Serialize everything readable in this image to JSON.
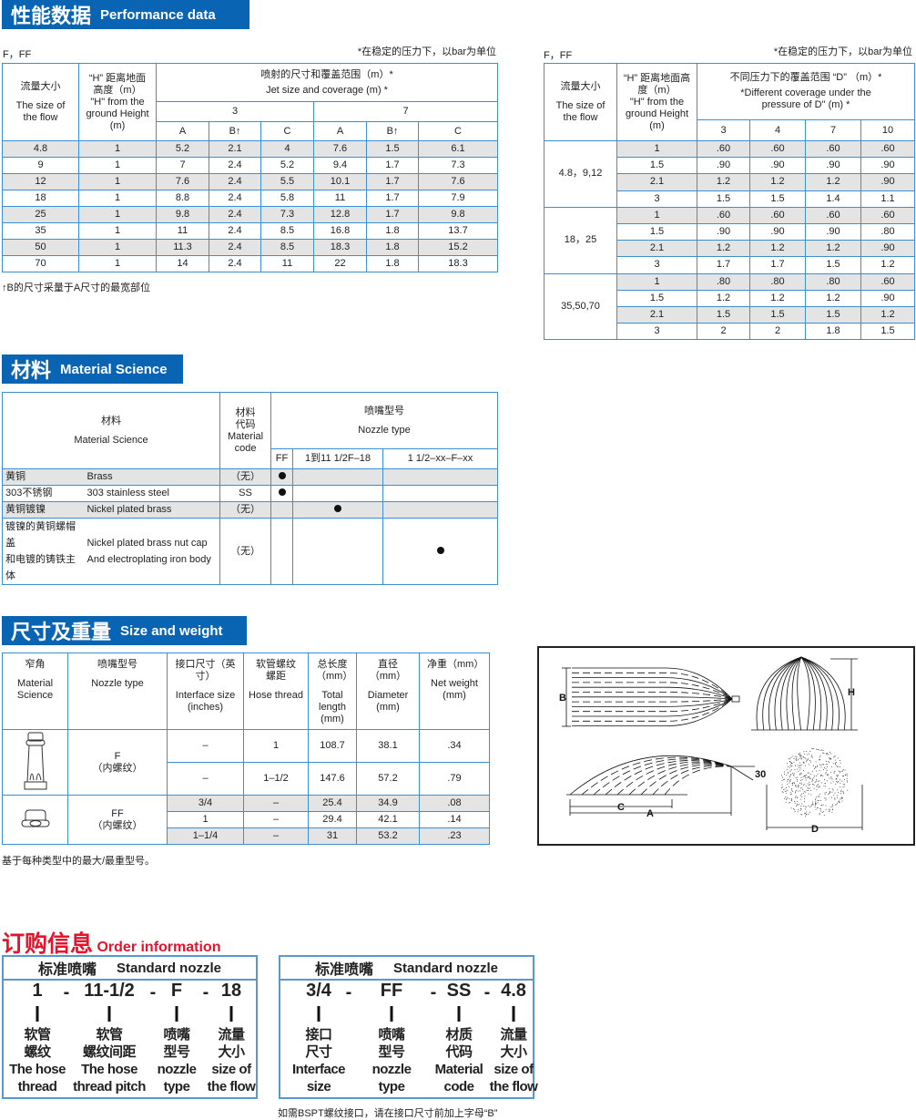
{
  "performance": {
    "banner_zh": "性能数据",
    "banner_en": "Performance data",
    "left": {
      "label": "F，FF",
      "note": "*在稳定的压力下，以bar为单位",
      "headers": {
        "flow_zh": "流量大小",
        "flow_en": "The size of the flow",
        "height_zh": "“H” 距离地面高度（m）",
        "height_en": "\"H\" from the ground Height (m)",
        "jet_zh": "喷射的尺寸和覆盖范围（m）*",
        "jet_en": "Jet size and coverage (m) *",
        "pressures": [
          "3",
          "7"
        ],
        "sub": [
          "A",
          "B↑",
          "C",
          "A",
          "B↑",
          "C"
        ]
      },
      "rows": [
        [
          "4.8",
          "1",
          "5.2",
          "2.1",
          "4",
          "7.6",
          "1.5",
          "6.1"
        ],
        [
          "9",
          "1",
          "7",
          "2.4",
          "5.2",
          "9.4",
          "1.7",
          "7.3"
        ],
        [
          "12",
          "1",
          "7.6",
          "2.4",
          "5.5",
          "10.1",
          "1.7",
          "7.6"
        ],
        [
          "18",
          "1",
          "8.8",
          "2.4",
          "5.8",
          "11",
          "1.7",
          "7.9"
        ],
        [
          "25",
          "1",
          "9.8",
          "2.4",
          "7.3",
          "12.8",
          "1.7",
          "9.8"
        ],
        [
          "35",
          "1",
          "11",
          "2.4",
          "8.5",
          "16.8",
          "1.8",
          "13.7"
        ],
        [
          "50",
          "1",
          "11.3",
          "2.4",
          "8.5",
          "18.3",
          "1.8",
          "15.2"
        ],
        [
          "70",
          "1",
          "14",
          "2.4",
          "11",
          "22",
          "1.8",
          "18.3"
        ]
      ],
      "footnote": "↑B的尺寸采量于A尺寸的最宽部位"
    },
    "right": {
      "label": "F，FF",
      "note": "*在稳定的压力下，以bar为单位",
      "headers": {
        "flow_zh": "流量大小",
        "flow_en": "The size of the flow",
        "height_zh": "“H” 距离地面高度（m）",
        "height_en": "\"H\" from the ground Height (m)",
        "cov_zh": "不同压力下的覆盖范围 “D” （m）*",
        "cov_en": "*Different coverage under the pressure of D\" (m) *",
        "pressures": [
          "3",
          "4",
          "7",
          "10"
        ]
      },
      "groups": [
        {
          "flow": "4.8，9,12",
          "rows": [
            [
              "1",
              ".60",
              ".60",
              ".60",
              ".60"
            ],
            [
              "1.5",
              ".90",
              ".90",
              ".90",
              ".90"
            ],
            [
              "2.1",
              "1.2",
              "1.2",
              "1.2",
              ".90"
            ],
            [
              "3",
              "1.5",
              "1.5",
              "1.4",
              "1.1"
            ]
          ]
        },
        {
          "flow": "18，25",
          "rows": [
            [
              "1",
              ".60",
              ".60",
              ".60",
              ".60"
            ],
            [
              "1.5",
              ".90",
              ".90",
              ".90",
              ".80"
            ],
            [
              "2.1",
              "1.2",
              "1.2",
              "1.2",
              ".90"
            ],
            [
              "3",
              "1.7",
              "1.7",
              "1.5",
              "1.2"
            ]
          ]
        },
        {
          "flow": "35,50,70",
          "rows": [
            [
              "1",
              ".80",
              ".80",
              ".80",
              ".60"
            ],
            [
              "1.5",
              "1.2",
              "1.2",
              "1.2",
              ".90"
            ],
            [
              "2.1",
              "1.5",
              "1.5",
              "1.5",
              "1.2"
            ],
            [
              "3",
              "2",
              "2",
              "1.8",
              "1.5"
            ]
          ]
        }
      ]
    }
  },
  "material": {
    "banner_zh": "材料",
    "banner_en": "Material Science",
    "headers": {
      "mat_zh": "材料",
      "mat_en": "Material Science",
      "code_zh": "材料代码",
      "code_en": "Material code",
      "nozzle_zh": "喷嘴型号",
      "nozzle_en": "Nozzle type",
      "types": [
        "FF",
        "1到11 1/2F–18",
        "1 1/2–xx–F–xx"
      ]
    },
    "rows": [
      {
        "zh": [
          "黄铜"
        ],
        "en": [
          "Brass"
        ],
        "code": "（无）",
        "dot": 0
      },
      {
        "zh": [
          "303不锈钢"
        ],
        "en": [
          "303 stainless steel"
        ],
        "code": "SS",
        "dot": 0
      },
      {
        "zh": [
          "黄铜镀镍"
        ],
        "en": [
          "Nickel plated brass"
        ],
        "code": "（无）",
        "dot": 1
      },
      {
        "zh": [
          "镀镍的黄铜螺帽盖",
          "和电镀的铸铁主体"
        ],
        "en": [
          "Nickel plated brass nut cap",
          "And electroplating iron body"
        ],
        "code": "（无）",
        "dot": 2
      }
    ]
  },
  "size": {
    "banner_zh": "尺寸及重量",
    "banner_en": "Size and weight",
    "headers": [
      {
        "zh": "窄角",
        "en": "Material Science"
      },
      {
        "zh": "喷嘴型号",
        "en": "Nozzle type"
      },
      {
        "zh": "接口尺寸（英寸）",
        "en": "Interface size (inches)"
      },
      {
        "zh": "软管螺纹螺距",
        "en": "Hose thread"
      },
      {
        "zh": "总长度（mm）",
        "en": "Total length (mm)"
      },
      {
        "zh": "直径（mm）",
        "en": "Diameter (mm)"
      },
      {
        "zh": "净重（mm）",
        "en": "Net weight (mm)"
      }
    ],
    "groups": [
      {
        "type": "F",
        "type_sub": "（内螺纹）",
        "icon": "f-nozzle-icon",
        "rows": [
          [
            "–",
            "1",
            "108.7",
            "38.1",
            ".34"
          ],
          [
            "–",
            "1–1/2",
            "147.6",
            "57.2",
            ".79"
          ]
        ]
      },
      {
        "type": "FF",
        "type_sub": "（内螺纹）",
        "icon": "ff-nozzle-icon",
        "rows": [
          [
            "3/4",
            "–",
            "25.4",
            "34.9",
            ".08"
          ],
          [
            "1",
            "–",
            "29.4",
            "42.1",
            ".14"
          ],
          [
            "1–1/4",
            "–",
            "31",
            "53.2",
            ".23"
          ]
        ]
      }
    ],
    "footnote": "基于每种类型中的最大/最重型号。"
  },
  "diagram": {
    "labels": [
      "B",
      "H",
      "C",
      "A",
      "30",
      "D"
    ]
  },
  "order": {
    "title_zh": "订购信息",
    "title_en": "Order information",
    "boxes": [
      {
        "head_zh": "标准喷嘴",
        "head_en": "Standard nozzle",
        "parts": [
          {
            "code": "1",
            "label": [
              "软管",
              "螺纹",
              "The hose",
              "thread"
            ]
          },
          {
            "code": "11-1/2",
            "label": [
              "软管",
              "螺纹间距",
              "The hose",
              "thread pitch"
            ]
          },
          {
            "code": "F",
            "label": [
              "喷嘴",
              "型号",
              "nozzle",
              "type"
            ]
          },
          {
            "code": "18",
            "label": [
              "流量",
              "大小",
              "size of",
              "the flow"
            ]
          }
        ]
      },
      {
        "head_zh": "标准喷嘴",
        "head_en": "Standard nozzle",
        "parts": [
          {
            "code": "3/4",
            "label": [
              "接口",
              "尺寸",
              "Interface",
              "size"
            ]
          },
          {
            "code": "FF",
            "label": [
              "喷嘴",
              "型号",
              "nozzle",
              "type"
            ]
          },
          {
            "code": "SS",
            "label": [
              "材质",
              "代码",
              "Material",
              "code"
            ]
          },
          {
            "code": "4.8",
            "label": [
              "流量",
              "大小",
              "size of",
              "the flow"
            ]
          }
        ]
      }
    ],
    "separator": "-",
    "footnote": "如需BSPT螺纹接口，请在接口尺寸前加上字母“B”"
  },
  "colors": {
    "banner": "#0a64b4",
    "border": "#3b8fd3",
    "order_title": "#e8132a",
    "row_shade": "#e4e4e4"
  }
}
